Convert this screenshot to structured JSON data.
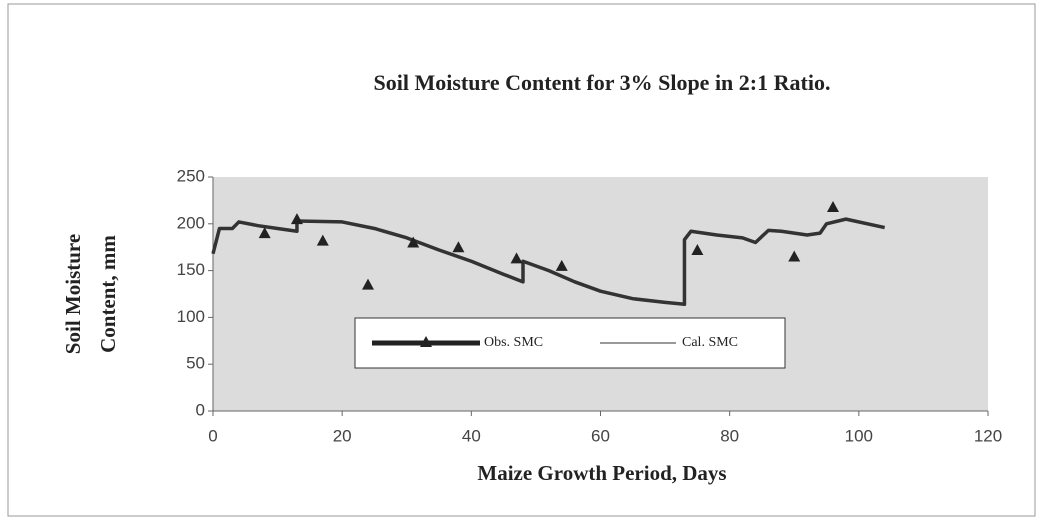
{
  "chart_data": {
    "type": "line",
    "title": "Soil Moisture Content for 3% Slope in 2:1 Ratio.",
    "x_label": "Maize Growth Period, Days",
    "y_label": [
      "Soil Moisture",
      "Content, mm"
    ],
    "xlim": [
      0,
      120
    ],
    "xticks": [
      0,
      20,
      40,
      60,
      80,
      100,
      120
    ],
    "ylim": [
      0,
      250
    ],
    "yticks": [
      0,
      50,
      100,
      150,
      200,
      250
    ],
    "series": [
      {
        "name": "Obs. SMC",
        "color": "#222222",
        "x": [
          8,
          13,
          17,
          24,
          31,
          38,
          47,
          54,
          75,
          90,
          96
        ],
        "values": [
          190,
          205,
          182,
          135,
          180,
          175,
          163,
          155,
          172,
          165,
          218
        ]
      },
      {
        "name": "Cal. SMC",
        "color": "#333333",
        "x": [
          0,
          1,
          3,
          4,
          7,
          10,
          13,
          13,
          20,
          25,
          30,
          35,
          40,
          45,
          48,
          48,
          52,
          56,
          60,
          65,
          70,
          73,
          73,
          74,
          78,
          82,
          84,
          86,
          88,
          92,
          94,
          95,
          98,
          104
        ],
        "values": [
          168,
          195,
          195,
          202,
          198,
          195,
          192,
          203,
          202,
          195,
          185,
          172,
          160,
          146,
          138,
          160,
          150,
          138,
          128,
          120,
          116,
          114,
          183,
          192,
          188,
          185,
          180,
          193,
          192,
          188,
          190,
          200,
          205,
          196
        ]
      }
    ]
  }
}
